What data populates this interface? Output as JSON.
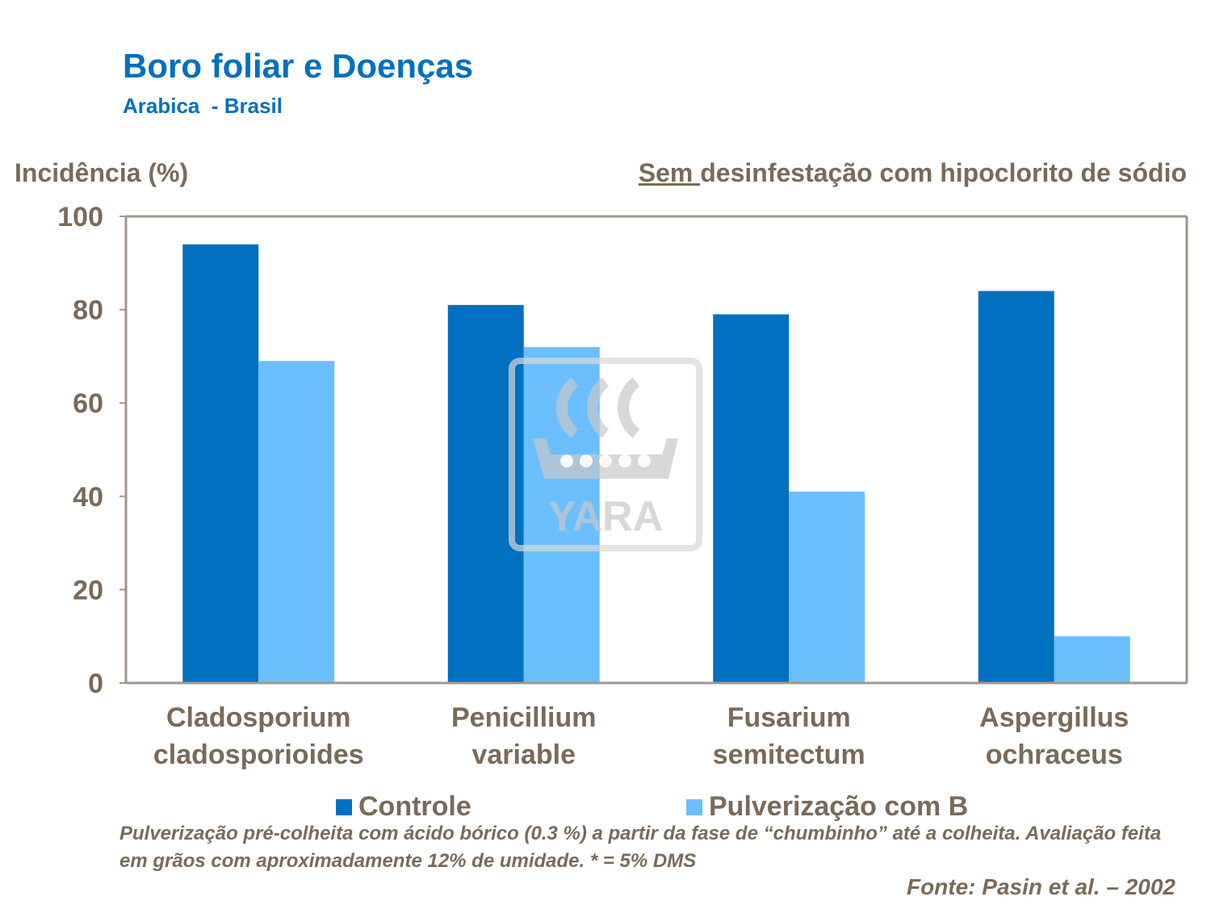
{
  "title": "Boro foliar e Doenças",
  "subtitle": "Arabica  - Brasil",
  "condition": {
    "underlined": "Sem ",
    "rest": "desinfestação com hipoclorito de sódio"
  },
  "watermark": {
    "text": "YARA",
    "icon": "yara-viking-ship-logo",
    "color": "#d9d9d9"
  },
  "note": "Pulverização pré-colheita com ácido bórico (0.3 %) a partir da fase de “chumbinho” até a colheita. Avaliação feita em grãos com aproximadamente 12% de umidade. * = 5% DMS",
  "source": "Fonte: Pasin et al. – 2002",
  "chart_data": {
    "type": "bar",
    "ylabel": "Incidência (%)",
    "xlabel": "",
    "ylim": [
      0,
      100
    ],
    "yticks": [
      0,
      20,
      40,
      60,
      80,
      100
    ],
    "grid": false,
    "legend": "bottom",
    "categories": [
      [
        "Cladosporium",
        "cladosporioides"
      ],
      [
        "Penicillium",
        "variable"
      ],
      [
        "Fusarium",
        "semitectum"
      ],
      [
        "Aspergillus",
        "ochraceus"
      ]
    ],
    "series": [
      {
        "name": "Controle",
        "color": "#0070c0",
        "values": [
          94,
          81,
          79,
          84
        ]
      },
      {
        "name": "Pulverização com B",
        "color": "#6bbfff",
        "values": [
          69,
          72,
          41,
          10
        ]
      }
    ]
  }
}
